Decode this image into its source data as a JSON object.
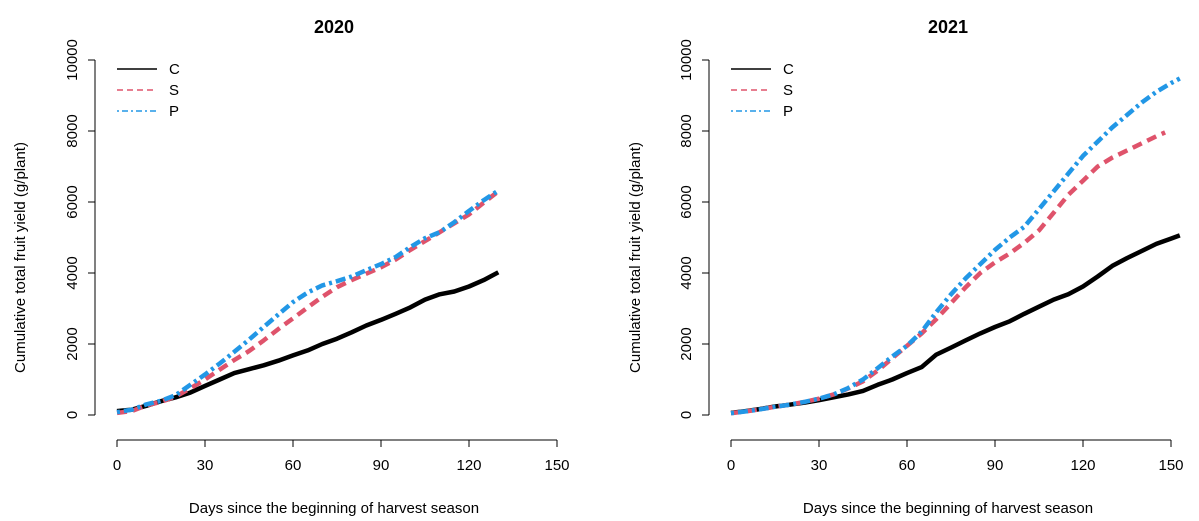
{
  "chart_data": [
    {
      "type": "line",
      "title": "2020",
      "xlabel": "Days since the beginning of harvest season",
      "ylabel": "Cumulative total fruit yield (g/plant)",
      "xlim": [
        0,
        150
      ],
      "ylim": [
        0,
        10000
      ],
      "xticks": [
        0,
        30,
        60,
        90,
        120,
        150
      ],
      "yticks": [
        0,
        2000,
        4000,
        6000,
        8000,
        10000
      ],
      "grid": false,
      "legend_position": "top-left",
      "series": [
        {
          "name": "C",
          "color": "#000000",
          "dash": "solid",
          "x": [
            0,
            5,
            10,
            15,
            20,
            25,
            30,
            35,
            40,
            45,
            50,
            55,
            60,
            65,
            70,
            75,
            80,
            85,
            90,
            95,
            100,
            105,
            110,
            115,
            120,
            125,
            130
          ],
          "y": [
            110,
            150,
            260,
            390,
            500,
            630,
            820,
            1000,
            1180,
            1290,
            1400,
            1530,
            1680,
            1820,
            2000,
            2150,
            2330,
            2520,
            2680,
            2850,
            3030,
            3250,
            3400,
            3480,
            3620,
            3800,
            4020
          ]
        },
        {
          "name": "S",
          "color": "#df536b",
          "dash": "dashed",
          "x": [
            0,
            5,
            10,
            15,
            20,
            25,
            30,
            35,
            40,
            45,
            50,
            55,
            60,
            65,
            70,
            75,
            80,
            85,
            90,
            95,
            100,
            105,
            110,
            115,
            120,
            125,
            130
          ],
          "y": [
            60,
            110,
            270,
            370,
            520,
            750,
            1000,
            1280,
            1550,
            1800,
            2100,
            2420,
            2720,
            3030,
            3330,
            3600,
            3800,
            3980,
            4160,
            4380,
            4650,
            4900,
            5150,
            5400,
            5650,
            5980,
            6300
          ]
        },
        {
          "name": "P",
          "color": "#2297e6",
          "dash": "dotdash",
          "x": [
            0,
            5,
            10,
            15,
            20,
            25,
            30,
            35,
            40,
            45,
            50,
            55,
            60,
            65,
            70,
            75,
            80,
            85,
            90,
            95,
            100,
            105,
            110,
            115,
            120,
            125,
            130
          ],
          "y": [
            80,
            150,
            300,
            400,
            560,
            850,
            1140,
            1450,
            1780,
            2120,
            2480,
            2830,
            3180,
            3450,
            3650,
            3770,
            3900,
            4080,
            4250,
            4450,
            4730,
            4980,
            5150,
            5430,
            5750,
            6050,
            6320
          ]
        }
      ]
    },
    {
      "type": "line",
      "title": "2021",
      "xlabel": "Days since the beginning of harvest season",
      "ylabel": "Cumulative total fruit yield (g/plant)",
      "xlim": [
        0,
        150
      ],
      "ylim": [
        0,
        10000
      ],
      "xticks": [
        0,
        30,
        60,
        90,
        120,
        150
      ],
      "yticks": [
        0,
        2000,
        4000,
        6000,
        8000,
        10000
      ],
      "grid": false,
      "legend_position": "top-left",
      "series": [
        {
          "name": "C",
          "color": "#000000",
          "dash": "solid",
          "x": [
            0,
            5,
            10,
            15,
            20,
            25,
            30,
            35,
            40,
            45,
            50,
            55,
            60,
            65,
            70,
            75,
            80,
            85,
            90,
            95,
            100,
            105,
            110,
            115,
            120,
            125,
            130,
            135,
            140,
            145,
            150,
            153
          ],
          "y": [
            60,
            110,
            170,
            240,
            290,
            350,
            420,
            500,
            580,
            680,
            850,
            1000,
            1180,
            1350,
            1700,
            1900,
            2100,
            2300,
            2480,
            2640,
            2850,
            3050,
            3250,
            3400,
            3620,
            3900,
            4200,
            4420,
            4620,
            4820,
            4970,
            5060
          ]
        },
        {
          "name": "S",
          "color": "#df536b",
          "dash": "dashed",
          "x": [
            0,
            5,
            10,
            15,
            20,
            25,
            30,
            35,
            40,
            45,
            50,
            55,
            60,
            65,
            70,
            75,
            80,
            85,
            90,
            95,
            100,
            105,
            110,
            115,
            120,
            125,
            130,
            135,
            140,
            145,
            148
          ],
          "y": [
            50,
            100,
            160,
            230,
            290,
            370,
            460,
            580,
            750,
            950,
            1250,
            1600,
            1950,
            2300,
            2700,
            3150,
            3600,
            4000,
            4300,
            4550,
            4850,
            5200,
            5700,
            6200,
            6600,
            7000,
            7250,
            7450,
            7650,
            7850,
            7960
          ]
        },
        {
          "name": "P",
          "color": "#2297e6",
          "dash": "dotdash",
          "x": [
            0,
            5,
            10,
            15,
            20,
            25,
            30,
            35,
            40,
            45,
            50,
            55,
            60,
            65,
            70,
            75,
            80,
            85,
            90,
            95,
            100,
            105,
            110,
            115,
            120,
            125,
            130,
            135,
            140,
            145,
            150,
            153
          ],
          "y": [
            50,
            100,
            160,
            230,
            290,
            370,
            460,
            580,
            760,
            1000,
            1320,
            1650,
            1950,
            2350,
            2900,
            3400,
            3850,
            4250,
            4650,
            5000,
            5300,
            5800,
            6300,
            6800,
            7300,
            7700,
            8100,
            8450,
            8800,
            9100,
            9350,
            9480
          ]
        }
      ]
    }
  ]
}
